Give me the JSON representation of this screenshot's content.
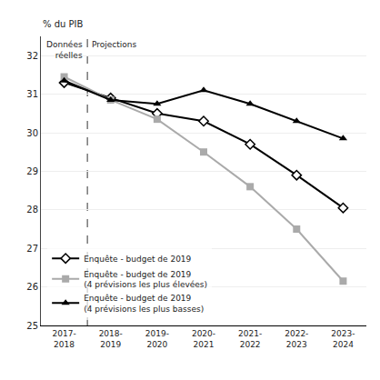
{
  "chart_data": {
    "type": "line",
    "categories": [
      "2017-\n2018",
      "2018-\n2019",
      "2019-\n2020",
      "2020-\n2021",
      "2021-\n2022",
      "2022-\n2023",
      "2023-\n2024"
    ],
    "series": [
      {
        "name": "Enquête - budget de 2019",
        "color": "#000000",
        "marker": "diamond-open",
        "values": [
          31.3,
          30.9,
          30.5,
          30.3,
          29.7,
          28.9,
          28.05
        ]
      },
      {
        "name": "Enquête - budget de 2019\n(4 prévisions les plus élevées)",
        "color": "#aaaaaa",
        "marker": "square",
        "values": [
          31.45,
          30.85,
          30.35,
          29.5,
          28.6,
          27.5,
          26.15
        ]
      },
      {
        "name": "Enquête - budget de 2019\n(4 prévisions les plus basses)",
        "color": "#000000",
        "marker": "triangle-up",
        "values": [
          31.35,
          30.85,
          30.75,
          31.1,
          30.75,
          30.3,
          29.85
        ]
      }
    ],
    "y_label": "% du PIB",
    "annotations": [
      "Données\nréelles",
      "Projections"
    ],
    "ylim": [
      25,
      32.5
    ],
    "yticks": [
      25,
      26,
      27,
      28,
      29,
      30,
      31,
      32
    ],
    "grid": true,
    "legend": "lower left"
  }
}
